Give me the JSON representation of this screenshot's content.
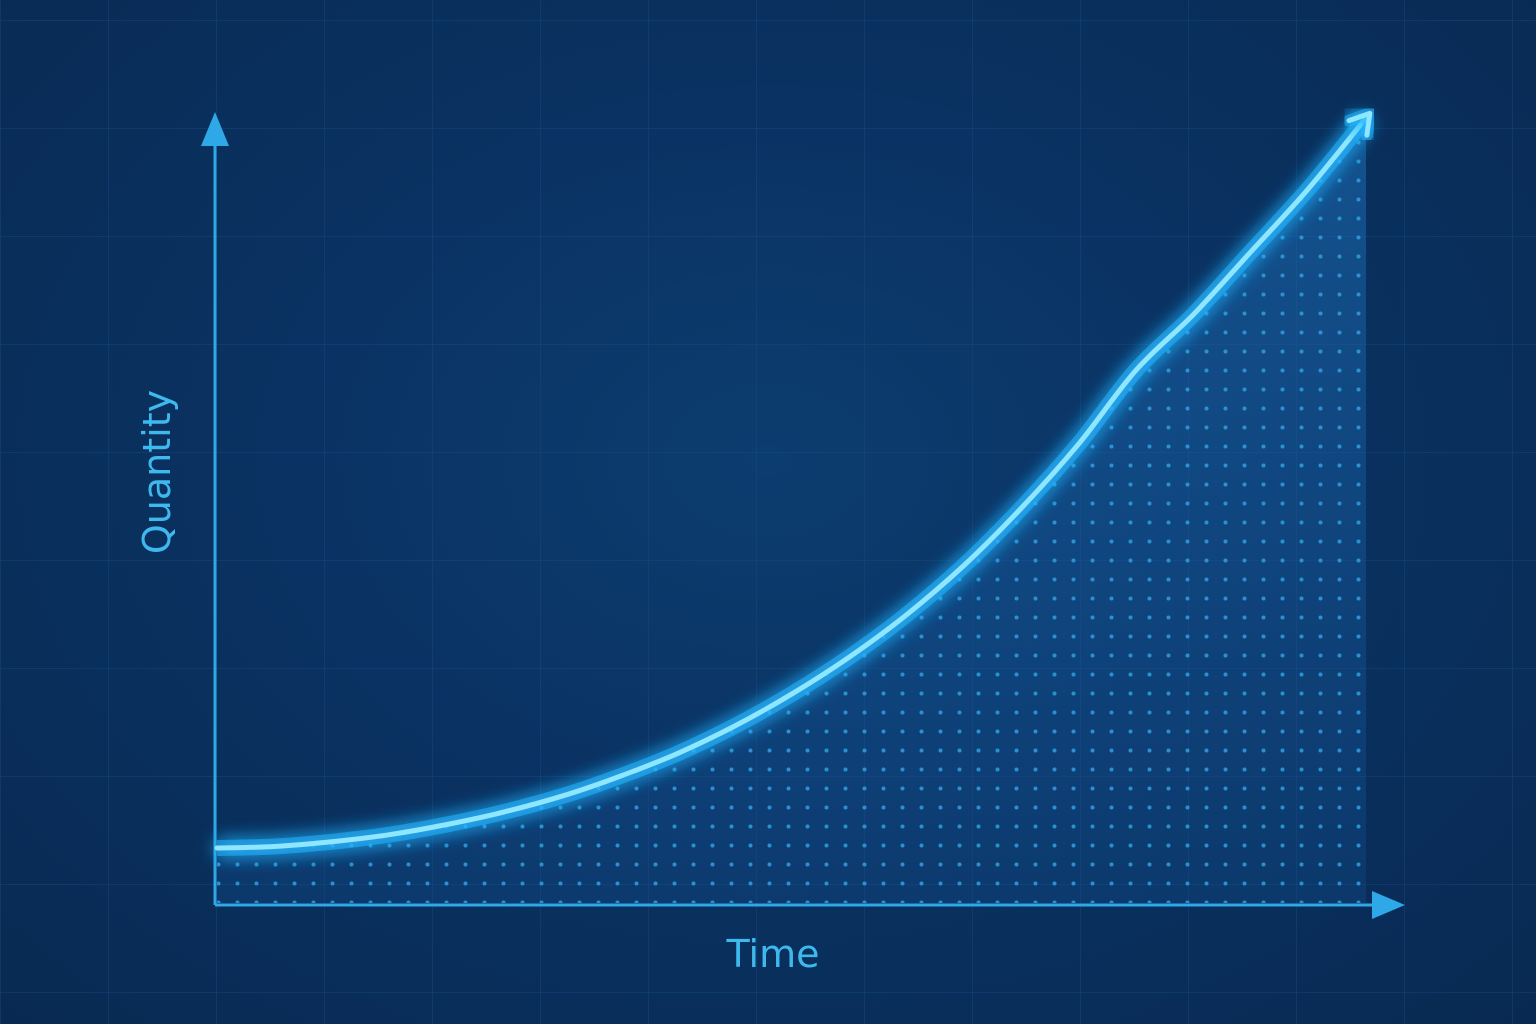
{
  "chart_data": {
    "type": "area",
    "title": "",
    "xlabel": "Time",
    "ylabel": "Quantity",
    "x": [
      0,
      0.05,
      0.1,
      0.15,
      0.2,
      0.25,
      0.3,
      0.35,
      0.4,
      0.45,
      0.5,
      0.55,
      0.6,
      0.65,
      0.7,
      0.75,
      0.8,
      0.85,
      0.9,
      0.95,
      1.0
    ],
    "series": [
      {
        "values": [
          0.07,
          0.072,
          0.078,
          0.087,
          0.1,
          0.116,
          0.136,
          0.161,
          0.19,
          0.225,
          0.266,
          0.313,
          0.367,
          0.43,
          0.503,
          0.585,
          0.679,
          0.75,
          0.83,
          0.91,
          1.0
        ]
      }
    ],
    "xlim": [
      0,
      1
    ],
    "ylim": [
      0,
      1
    ],
    "grid": true,
    "legend": "none",
    "colors": {
      "background": "#0a3262",
      "axis": "#2ea8e6",
      "curve": "#7fe0ff",
      "curve_glow": "#25b5ff",
      "fill_dots": "#2f9fe0",
      "grid": "#1a4a7e",
      "label": "#3fb8ee"
    },
    "axis_arrows": true,
    "curve_end_arrow": true
  }
}
